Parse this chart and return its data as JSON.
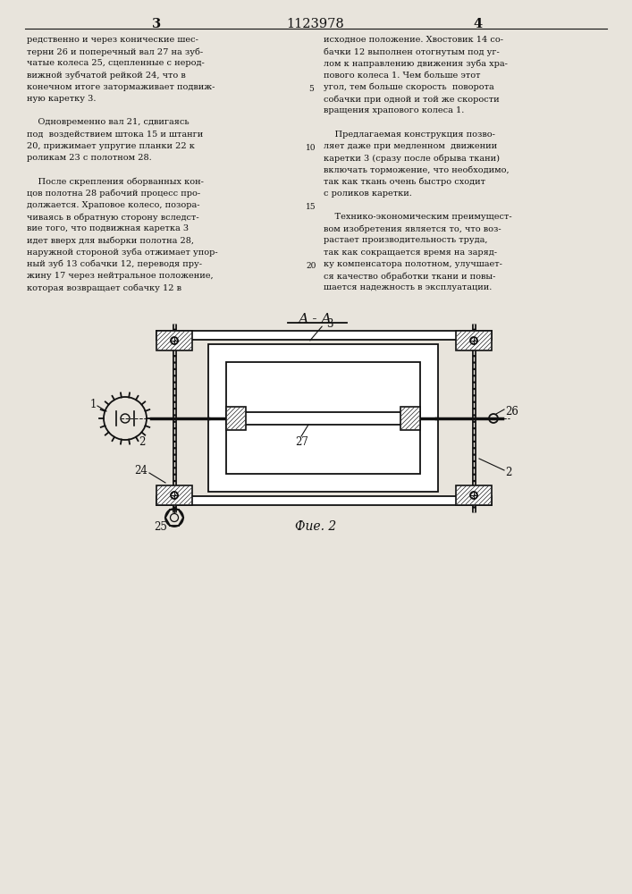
{
  "bg_color": "#e8e4dc",
  "text_color": "#111111",
  "title_number": "1123978",
  "page_left": "3",
  "page_right": "4",
  "left_column_text": [
    "редственно и через конические шес-",
    "терни 26 и поперечный вал 27 на зуб-",
    "чатые колеса 25, сцепленные с неpод-",
    "вижной зубчатой рейкой 24, что в",
    "конечном итоге затормаживает подвиж-",
    "ную каретку 3.",
    "",
    "    Одновременно вал 21, сдвигаясь",
    "под  воздействием штока 15 и штанги",
    "20, прижимает упругие планки 22 к",
    "роликам 23 с полотном 28.",
    "",
    "    После скрепления оборванных кон-",
    "цов полотна 28 рабочий процесс про-",
    "должается. Храповое колесо, позора-",
    "чиваясь в обратную сторону вследст-",
    "вие того, что подвижная каретка 3",
    "идет вверх для выборки полотна 28,",
    "наружной стороной зуба отжимает упор-",
    "ный зуб 13 собачки 12, переводя пру-",
    "жину 17 через нейтральное положение,",
    "которая возвращает собачку 12 в"
  ],
  "right_column_text": [
    "исходное положение. Хвостовик 14 со-",
    "бачки 12 выполнен отогнутым под уг-",
    "лом к направлению движения зуба хра-",
    "пового колеса 1. Чем больше этот",
    "угол, тем больше скорость  поворота",
    "собачки при одной и той же скорости",
    "вращения храпового колеса 1.",
    "",
    "    Предлагаемая конструкция позво-",
    "ляет даже при медленном  движении",
    "каретки 3 (сразу после обрыва ткани)",
    "включать торможение, что необходимо,",
    "так как ткань очень быстро сходит",
    "с роликов каретки.",
    "",
    "    Технико-экономическим преимущест-",
    "вом изобретения является то, что воз-",
    "растает производительность труда,",
    "так как сокращается время на заряд-",
    "ку компенсатора полотном, улучшает-",
    "ся качество обработки ткани и повы-",
    "шается надежность в эксплуатации."
  ],
  "line_numbers": [
    "5",
    "10",
    "15",
    "20"
  ],
  "ln_rows": [
    5,
    10,
    15,
    20
  ],
  "section_label": "А - А",
  "figure_label": "Фие. 2"
}
